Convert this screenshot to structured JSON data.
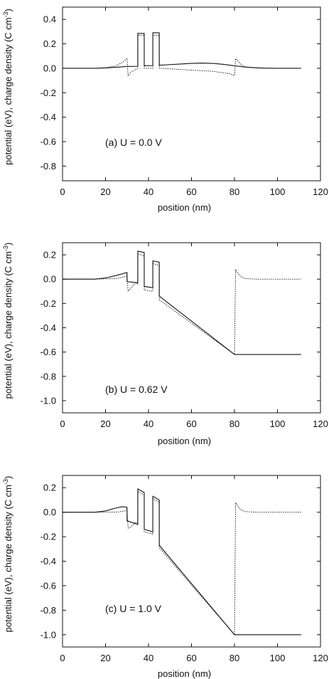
{
  "chart_data": [
    {
      "type": "line",
      "annotation": "(a)  U = 0.0 V",
      "xlabel": "position (nm)",
      "ylabel": "potential (eV), charge density (C cm",
      "ylabel_sup": "-3",
      "ylabel_end": ")",
      "xlim": [
        0,
        120
      ],
      "ylim": [
        -0.92,
        0.5
      ],
      "xticks": [
        0,
        20,
        40,
        60,
        80,
        100,
        120
      ],
      "yticks": [
        0.4,
        0.2,
        0.0,
        -0.2,
        -0.4,
        -0.6,
        -0.8
      ],
      "series": [
        {
          "style": "solid",
          "x": [
            0,
            15,
            20,
            25,
            28,
            30,
            30.01,
            35,
            35.01,
            38,
            38.01,
            42,
            42.01,
            45,
            45.01,
            50,
            55,
            60,
            65,
            70,
            75,
            80,
            80.01,
            85,
            90,
            95,
            100,
            111
          ],
          "y": [
            0,
            0,
            0.003,
            0.008,
            0.012,
            0.015,
            0.015,
            0.016,
            0.285,
            0.285,
            0.02,
            0.022,
            0.29,
            0.29,
            0.025,
            0.03,
            0.035,
            0.04,
            0.042,
            0.04,
            0.032,
            0.02,
            0.02,
            0.01,
            0.004,
            0.001,
            0,
            0
          ]
        },
        {
          "style": "dotted",
          "x": [
            0,
            15,
            20,
            25,
            28,
            30,
            30.5,
            32,
            34,
            35,
            35.01,
            38,
            38.01,
            42,
            42.01,
            45,
            45.01,
            50,
            60,
            70,
            78,
            80,
            80.5,
            81.5,
            83,
            85,
            90,
            95,
            100,
            111
          ],
          "y": [
            0,
            0,
            0.005,
            0.02,
            0.05,
            0.08,
            -0.06,
            -0.03,
            -0.01,
            0,
            0.27,
            0.27,
            0.0,
            0.0,
            0.27,
            0.27,
            0,
            -0.005,
            -0.015,
            -0.025,
            -0.045,
            -0.06,
            0.08,
            0.06,
            0.03,
            0.01,
            0.002,
            0,
            0,
            0
          ]
        }
      ]
    },
    {
      "type": "line",
      "annotation": "(b)  U = 0.62 V",
      "xlabel": "position (nm)",
      "ylabel": "potential (eV), charge density (C cm",
      "ylabel_sup": "-3",
      "ylabel_end": ")",
      "xlim": [
        0,
        120
      ],
      "ylim": [
        -1.1,
        0.3
      ],
      "xticks": [
        0,
        20,
        40,
        60,
        80,
        100,
        120
      ],
      "yticks": [
        0.2,
        0.0,
        -0.2,
        -0.4,
        -0.6,
        -0.8,
        -1.0
      ],
      "series": [
        {
          "style": "solid",
          "x": [
            0,
            15,
            20,
            25,
            30,
            30.01,
            35,
            35.01,
            38,
            38.01,
            42,
            42.01,
            45,
            45.01,
            80,
            111
          ],
          "y": [
            0,
            0,
            0.01,
            0.03,
            0.055,
            -0.02,
            -0.03,
            0.23,
            0.22,
            -0.06,
            -0.07,
            0.15,
            0.14,
            -0.14,
            -0.62,
            -0.62
          ]
        },
        {
          "style": "dotted",
          "x": [
            0,
            15,
            25,
            29,
            30,
            30.5,
            32,
            34,
            35,
            35.01,
            38,
            38.01,
            42,
            42.01,
            45,
            45.01,
            80,
            80.5,
            81.5,
            83,
            85,
            90,
            111
          ],
          "y": [
            0,
            0,
            0.005,
            0.02,
            0.03,
            -0.1,
            -0.07,
            -0.03,
            -0.04,
            0.21,
            0.19,
            -0.09,
            -0.1,
            0.13,
            0.11,
            -0.17,
            -0.62,
            0.08,
            0.05,
            0.02,
            0.005,
            0,
            0
          ]
        }
      ]
    },
    {
      "type": "line",
      "annotation": "(c)  U = 1.0 V",
      "xlabel": "position (nm)",
      "ylabel": "potential (eV), charge density (C cm",
      "ylabel_sup": "-3",
      "ylabel_end": ")",
      "xlim": [
        0,
        120
      ],
      "ylim": [
        -1.1,
        0.3
      ],
      "xticks": [
        0,
        20,
        40,
        60,
        80,
        100,
        120
      ],
      "yticks": [
        0.2,
        0.0,
        -0.2,
        -0.4,
        -0.6,
        -0.8,
        -1.0
      ],
      "series": [
        {
          "style": "solid",
          "x": [
            0,
            15,
            20,
            25,
            28,
            30,
            30.01,
            35,
            35.01,
            38,
            38.01,
            42,
            42.01,
            45,
            45.01,
            80,
            111
          ],
          "y": [
            0,
            0,
            0.01,
            0.035,
            0.045,
            0.04,
            -0.07,
            -0.1,
            0.19,
            0.16,
            -0.14,
            -0.16,
            0.13,
            0.1,
            -0.27,
            -1.0,
            -1.0
          ]
        },
        {
          "style": "dotted",
          "x": [
            0,
            20,
            26,
            29,
            30,
            30.5,
            32,
            34,
            35,
            35.01,
            38,
            38.01,
            42,
            42.01,
            45,
            45.01,
            80,
            80.5,
            81.5,
            83,
            85,
            90,
            111
          ],
          "y": [
            0,
            0,
            0.002,
            0.01,
            0.02,
            -0.13,
            -0.12,
            -0.08,
            -0.1,
            0.17,
            0.14,
            -0.16,
            -0.18,
            0.11,
            0.08,
            -0.29,
            -1.0,
            0.08,
            0.05,
            0.02,
            0.005,
            0,
            0
          ]
        }
      ]
    }
  ]
}
